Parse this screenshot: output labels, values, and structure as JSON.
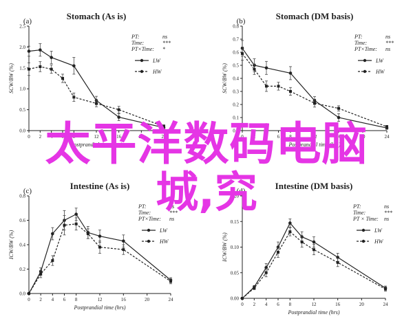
{
  "chart_data": [
    {
      "type": "line",
      "panel_label": "(a)",
      "title": "Stomach (As is)",
      "xlabel": "Postprandial time (hrs)",
      "ylabel": "SCW/BW (%)",
      "xlim": [
        0,
        24
      ],
      "ylim": [
        0,
        2.5
      ],
      "xticks": [
        0,
        2,
        4,
        6,
        8,
        12,
        16,
        20,
        24
      ],
      "yticks": [
        0.0,
        0.5,
        1.0,
        1.5,
        2.0,
        2.5
      ],
      "grid": false,
      "legend_position": "top-right",
      "stats": [
        {
          "label": "PT:",
          "value": "ns"
        },
        {
          "label": "Time:",
          "value": "***"
        },
        {
          "label": "PT×Time:",
          "value": "*"
        }
      ],
      "series": [
        {
          "name": "LW",
          "style": "solid",
          "x": [
            0,
            2,
            4,
            8,
            12,
            16,
            24
          ],
          "y": [
            1.9,
            1.93,
            1.75,
            1.55,
            0.72,
            0.32,
            0.07
          ],
          "err": [
            0.12,
            0.15,
            0.15,
            0.2,
            0.1,
            0.08,
            0.04
          ]
        },
        {
          "name": "HW",
          "style": "dashed",
          "x": [
            0,
            2,
            4,
            6,
            8,
            12,
            16,
            24
          ],
          "y": [
            1.47,
            1.53,
            1.47,
            1.25,
            0.8,
            0.65,
            0.5,
            0.1
          ],
          "err": [
            0.15,
            0.12,
            0.1,
            0.1,
            0.1,
            0.08,
            0.08,
            0.04
          ]
        }
      ]
    },
    {
      "type": "line",
      "panel_label": "(b)",
      "title": "Stomach (DM basis)",
      "xlabel": "Postprandial time (hrs)",
      "ylabel": "SCW/BW (%)",
      "xlim": [
        0,
        24
      ],
      "ylim": [
        0,
        0.8
      ],
      "xticks": [
        0,
        2,
        4,
        6,
        8,
        12,
        16,
        20,
        24
      ],
      "yticks": [
        0.0,
        0.1,
        0.2,
        0.3,
        0.4,
        0.5,
        0.6,
        0.7,
        0.8
      ],
      "grid": false,
      "legend_position": "top-right",
      "stats": [
        {
          "label": "PT:",
          "value": "ns"
        },
        {
          "label": "Time:",
          "value": "***"
        },
        {
          "label": "PT×Time:",
          "value": "ns"
        }
      ],
      "series": [
        {
          "name": "LW",
          "style": "solid",
          "x": [
            0,
            2,
            4,
            8,
            12,
            16,
            24
          ],
          "y": [
            0.63,
            0.5,
            0.48,
            0.44,
            0.23,
            0.1,
            0.02
          ],
          "err": [
            0.06,
            0.05,
            0.05,
            0.05,
            0.03,
            0.03,
            0.01
          ]
        },
        {
          "name": "HW",
          "style": "dashed",
          "x": [
            0,
            2,
            4,
            6,
            8,
            12,
            16,
            24
          ],
          "y": [
            0.59,
            0.47,
            0.34,
            0.34,
            0.3,
            0.21,
            0.17,
            0.03
          ],
          "err": [
            0.05,
            0.04,
            0.04,
            0.03,
            0.03,
            0.03,
            0.02,
            0.01
          ]
        }
      ]
    },
    {
      "type": "line",
      "panel_label": "(c)",
      "title": "Intestine (As is)",
      "xlabel": "Postprandial time (hrs)",
      "ylabel": "ICW/BW (%)",
      "xlim": [
        0,
        24
      ],
      "ylim": [
        0,
        0.8
      ],
      "xticks": [
        0,
        2,
        4,
        6,
        8,
        12,
        16,
        20,
        24
      ],
      "yticks": [
        0.0,
        0.2,
        0.4,
        0.6,
        0.8
      ],
      "grid": false,
      "legend_position": "top-right",
      "stats": [
        {
          "label": "PT:",
          "value": "ns"
        },
        {
          "label": "Time:",
          "value": "***"
        },
        {
          "label": "PT×Time:",
          "value": "ns"
        }
      ],
      "series": [
        {
          "name": "LW",
          "style": "solid",
          "x": [
            0,
            2,
            4,
            6,
            8,
            10,
            12,
            16,
            24
          ],
          "y": [
            0.0,
            0.18,
            0.49,
            0.6,
            0.65,
            0.5,
            0.47,
            0.43,
            0.11
          ],
          "err": [
            0.0,
            0.03,
            0.05,
            0.08,
            0.05,
            0.05,
            0.05,
            0.05,
            0.02
          ]
        },
        {
          "name": "HW",
          "style": "dashed",
          "x": [
            0,
            2,
            4,
            6,
            8,
            10,
            12,
            16,
            24
          ],
          "y": [
            0.0,
            0.16,
            0.27,
            0.56,
            0.57,
            0.49,
            0.38,
            0.36,
            0.1
          ],
          "err": [
            0.0,
            0.03,
            0.04,
            0.08,
            0.05,
            0.04,
            0.05,
            0.04,
            0.02
          ]
        }
      ]
    },
    {
      "type": "line",
      "panel_label": "(d)",
      "title": "Intestine (DM basis)",
      "xlabel": "Postprandial time (hrs)",
      "ylabel": "ICW/BW (%)",
      "xlim": [
        0,
        24
      ],
      "ylim": [
        0,
        0.2
      ],
      "xticks": [
        0,
        2,
        4,
        6,
        8,
        12,
        16,
        20,
        24
      ],
      "yticks": [
        0.0,
        0.05,
        0.1,
        0.15,
        0.2
      ],
      "ytick_labels": [
        "0.00",
        "0.05",
        "0.10",
        "0.15",
        "0.20"
      ],
      "grid": false,
      "legend_position": "top-right",
      "stats": [
        {
          "label": "PT:",
          "value": "ns"
        },
        {
          "label": "Time:",
          "value": "***"
        },
        {
          "label": "PT × Time:",
          "value": "ns"
        }
      ],
      "series": [
        {
          "name": "LW",
          "style": "solid",
          "x": [
            0,
            2,
            4,
            6,
            8,
            10,
            12,
            16,
            24
          ],
          "y": [
            0.0,
            0.022,
            0.06,
            0.1,
            0.147,
            0.12,
            0.11,
            0.08,
            0.02
          ],
          "err": [
            0.0,
            0.003,
            0.008,
            0.01,
            0.008,
            0.01,
            0.01,
            0.008,
            0.004
          ]
        },
        {
          "name": "HW",
          "style": "dashed",
          "x": [
            0,
            2,
            4,
            6,
            8,
            10,
            12,
            16,
            24
          ],
          "y": [
            0.0,
            0.02,
            0.05,
            0.09,
            0.13,
            0.11,
            0.095,
            0.07,
            0.018
          ],
          "err": [
            0.0,
            0.003,
            0.008,
            0.01,
            0.008,
            0.01,
            0.01,
            0.008,
            0.004
          ]
        }
      ]
    }
  ],
  "overlay": {
    "line1": "太平洋数码电脑",
    "line2": "城,究",
    "color": "#e535e5"
  }
}
